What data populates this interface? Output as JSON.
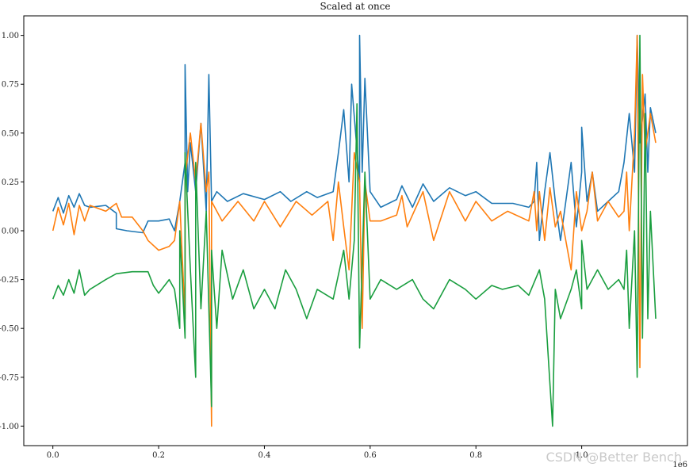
{
  "chart_data": {
    "type": "line",
    "title": "Scaled at once",
    "xlabel": "",
    "ylabel": "",
    "x_offset_label": "1e6",
    "xlim": [
      -0.055,
      1.2
    ],
    "ylim": [
      -1.1,
      1.1
    ],
    "x_ticks": [
      0.0,
      0.2,
      0.4,
      0.6,
      0.8,
      1.0
    ],
    "x_tick_labels": [
      "0.0",
      "0.2",
      "0.4",
      "0.6",
      "0.8",
      "1.0"
    ],
    "y_ticks": [
      -1.0,
      -0.75,
      -0.5,
      -0.25,
      0.0,
      0.25,
      0.5,
      0.75,
      1.0
    ],
    "y_tick_labels": [
      "-1.00",
      "-0.75",
      "-0.50",
      "-0.25",
      "0.00",
      "0.25",
      "0.50",
      "0.75",
      "1.00"
    ],
    "grid": false,
    "series": [
      {
        "color": "#1f77b4",
        "points": [
          [
            0.0,
            0.1
          ],
          [
            0.01,
            0.17
          ],
          [
            0.02,
            0.09
          ],
          [
            0.03,
            0.18
          ],
          [
            0.04,
            0.12
          ],
          [
            0.05,
            0.19
          ],
          [
            0.06,
            0.13
          ],
          [
            0.07,
            0.12
          ],
          [
            0.1,
            0.13
          ],
          [
            0.12,
            0.09
          ],
          [
            0.12,
            0.01
          ],
          [
            0.14,
            0.0
          ],
          [
            0.17,
            -0.01
          ],
          [
            0.18,
            0.05
          ],
          [
            0.2,
            0.05
          ],
          [
            0.22,
            0.06
          ],
          [
            0.23,
            0.0
          ],
          [
            0.24,
            0.15
          ],
          [
            0.25,
            0.35
          ],
          [
            0.25,
            0.85
          ],
          [
            0.255,
            0.2
          ],
          [
            0.26,
            0.45
          ],
          [
            0.27,
            0.2
          ],
          [
            0.28,
            0.55
          ],
          [
            0.29,
            0.1
          ],
          [
            0.295,
            0.8
          ],
          [
            0.3,
            0.15
          ],
          [
            0.31,
            0.2
          ],
          [
            0.33,
            0.15
          ],
          [
            0.36,
            0.19
          ],
          [
            0.4,
            0.16
          ],
          [
            0.43,
            0.2
          ],
          [
            0.45,
            0.15
          ],
          [
            0.48,
            0.2
          ],
          [
            0.5,
            0.17
          ],
          [
            0.53,
            0.2
          ],
          [
            0.54,
            0.4
          ],
          [
            0.55,
            0.62
          ],
          [
            0.56,
            0.25
          ],
          [
            0.565,
            0.75
          ],
          [
            0.58,
            0.25
          ],
          [
            0.58,
            1.0
          ],
          [
            0.585,
            0.3
          ],
          [
            0.59,
            0.78
          ],
          [
            0.6,
            0.2
          ],
          [
            0.62,
            0.12
          ],
          [
            0.65,
            0.16
          ],
          [
            0.66,
            0.23
          ],
          [
            0.68,
            0.12
          ],
          [
            0.7,
            0.24
          ],
          [
            0.72,
            0.15
          ],
          [
            0.75,
            0.22
          ],
          [
            0.78,
            0.18
          ],
          [
            0.8,
            0.2
          ],
          [
            0.83,
            0.14
          ],
          [
            0.87,
            0.14
          ],
          [
            0.9,
            0.12
          ],
          [
            0.91,
            0.15
          ],
          [
            0.915,
            0.35
          ],
          [
            0.92,
            -0.05
          ],
          [
            0.93,
            0.2
          ],
          [
            0.94,
            0.4
          ],
          [
            0.95,
            0.15
          ],
          [
            0.96,
            -0.05
          ],
          [
            0.98,
            0.35
          ],
          [
            0.99,
            0.02
          ],
          [
            1.0,
            0.3
          ],
          [
            1.0,
            0.53
          ],
          [
            1.01,
            0.15
          ],
          [
            1.02,
            0.3
          ],
          [
            1.03,
            0.1
          ],
          [
            1.05,
            0.15
          ],
          [
            1.07,
            0.2
          ],
          [
            1.08,
            0.35
          ],
          [
            1.09,
            0.6
          ],
          [
            1.1,
            0.3
          ],
          [
            1.105,
            1.0
          ],
          [
            1.11,
            0.45
          ],
          [
            1.12,
            0.7
          ],
          [
            1.125,
            0.3
          ],
          [
            1.13,
            0.63
          ],
          [
            1.14,
            0.5
          ]
        ]
      },
      {
        "color": "#ff7f0e",
        "points": [
          [
            0.0,
            0.0
          ],
          [
            0.01,
            0.12
          ],
          [
            0.02,
            0.03
          ],
          [
            0.03,
            0.14
          ],
          [
            0.04,
            -0.02
          ],
          [
            0.05,
            0.13
          ],
          [
            0.06,
            0.05
          ],
          [
            0.07,
            0.13
          ],
          [
            0.1,
            0.1
          ],
          [
            0.12,
            0.14
          ],
          [
            0.13,
            0.07
          ],
          [
            0.15,
            0.07
          ],
          [
            0.17,
            0.0
          ],
          [
            0.18,
            -0.05
          ],
          [
            0.2,
            -0.1
          ],
          [
            0.22,
            -0.08
          ],
          [
            0.23,
            -0.05
          ],
          [
            0.24,
            0.15
          ],
          [
            0.25,
            -0.45
          ],
          [
            0.25,
            0.27
          ],
          [
            0.26,
            0.5
          ],
          [
            0.27,
            0.25
          ],
          [
            0.28,
            0.55
          ],
          [
            0.29,
            0.2
          ],
          [
            0.295,
            0.3
          ],
          [
            0.3,
            -1.0
          ],
          [
            0.3,
            0.15
          ],
          [
            0.32,
            0.05
          ],
          [
            0.35,
            0.15
          ],
          [
            0.38,
            0.05
          ],
          [
            0.4,
            0.15
          ],
          [
            0.43,
            0.02
          ],
          [
            0.46,
            0.15
          ],
          [
            0.49,
            0.08
          ],
          [
            0.52,
            0.15
          ],
          [
            0.53,
            -0.05
          ],
          [
            0.54,
            0.25
          ],
          [
            0.55,
            0.02
          ],
          [
            0.56,
            -0.2
          ],
          [
            0.57,
            0.4
          ],
          [
            0.58,
            0.25
          ],
          [
            0.585,
            -0.5
          ],
          [
            0.59,
            0.25
          ],
          [
            0.6,
            0.05
          ],
          [
            0.62,
            0.05
          ],
          [
            0.65,
            0.08
          ],
          [
            0.66,
            0.18
          ],
          [
            0.67,
            0.02
          ],
          [
            0.7,
            0.2
          ],
          [
            0.72,
            -0.05
          ],
          [
            0.75,
            0.2
          ],
          [
            0.78,
            0.05
          ],
          [
            0.8,
            0.15
          ],
          [
            0.83,
            0.05
          ],
          [
            0.86,
            0.1
          ],
          [
            0.9,
            0.05
          ],
          [
            0.91,
            0.2
          ],
          [
            0.915,
            0.0
          ],
          [
            0.92,
            0.2
          ],
          [
            0.93,
            -0.05
          ],
          [
            0.94,
            0.22
          ],
          [
            0.95,
            0.02
          ],
          [
            0.96,
            0.1
          ],
          [
            0.98,
            -0.2
          ],
          [
            0.99,
            0.2
          ],
          [
            1.0,
            0.0
          ],
          [
            1.01,
            0.1
          ],
          [
            1.02,
            0.3
          ],
          [
            1.03,
            0.05
          ],
          [
            1.05,
            0.15
          ],
          [
            1.07,
            0.07
          ],
          [
            1.08,
            0.1
          ],
          [
            1.085,
            0.3
          ],
          [
            1.09,
            0.0
          ],
          [
            1.1,
            0.5
          ],
          [
            1.105,
            1.0
          ],
          [
            1.11,
            -0.7
          ],
          [
            1.115,
            0.8
          ],
          [
            1.12,
            0.4
          ],
          [
            1.13,
            0.6
          ],
          [
            1.14,
            0.45
          ]
        ]
      },
      {
        "color": "#1a9e3f",
        "points": [
          [
            0.0,
            -0.35
          ],
          [
            0.01,
            -0.28
          ],
          [
            0.02,
            -0.33
          ],
          [
            0.03,
            -0.25
          ],
          [
            0.04,
            -0.32
          ],
          [
            0.05,
            -0.2
          ],
          [
            0.06,
            -0.33
          ],
          [
            0.07,
            -0.3
          ],
          [
            0.1,
            -0.25
          ],
          [
            0.12,
            -0.22
          ],
          [
            0.15,
            -0.21
          ],
          [
            0.18,
            -0.21
          ],
          [
            0.19,
            -0.28
          ],
          [
            0.2,
            -0.32
          ],
          [
            0.22,
            -0.25
          ],
          [
            0.23,
            -0.3
          ],
          [
            0.24,
            -0.5
          ],
          [
            0.24,
            0.0
          ],
          [
            0.25,
            -0.55
          ],
          [
            0.25,
            0.4
          ],
          [
            0.26,
            -0.2
          ],
          [
            0.27,
            -0.75
          ],
          [
            0.27,
            0.35
          ],
          [
            0.28,
            -0.4
          ],
          [
            0.29,
            0.1
          ],
          [
            0.3,
            -0.9
          ],
          [
            0.3,
            -0.1
          ],
          [
            0.31,
            -0.5
          ],
          [
            0.32,
            -0.1
          ],
          [
            0.34,
            -0.35
          ],
          [
            0.36,
            -0.2
          ],
          [
            0.38,
            -0.4
          ],
          [
            0.4,
            -0.3
          ],
          [
            0.42,
            -0.4
          ],
          [
            0.44,
            -0.2
          ],
          [
            0.46,
            -0.3
          ],
          [
            0.48,
            -0.45
          ],
          [
            0.5,
            -0.3
          ],
          [
            0.53,
            -0.35
          ],
          [
            0.55,
            -0.1
          ],
          [
            0.56,
            -0.35
          ],
          [
            0.57,
            -0.05
          ],
          [
            0.575,
            0.65
          ],
          [
            0.58,
            -0.6
          ],
          [
            0.59,
            0.3
          ],
          [
            0.6,
            -0.35
          ],
          [
            0.62,
            -0.25
          ],
          [
            0.65,
            -0.3
          ],
          [
            0.68,
            -0.25
          ],
          [
            0.7,
            -0.35
          ],
          [
            0.72,
            -0.4
          ],
          [
            0.75,
            -0.25
          ],
          [
            0.78,
            -0.3
          ],
          [
            0.8,
            -0.35
          ],
          [
            0.83,
            -0.28
          ],
          [
            0.85,
            -0.3
          ],
          [
            0.88,
            -0.28
          ],
          [
            0.9,
            -0.33
          ],
          [
            0.92,
            -0.2
          ],
          [
            0.93,
            -0.35
          ],
          [
            0.945,
            -1.0
          ],
          [
            0.95,
            -0.3
          ],
          [
            0.96,
            -0.45
          ],
          [
            0.98,
            -0.3
          ],
          [
            0.99,
            -0.2
          ],
          [
            1.0,
            -0.4
          ],
          [
            1.0,
            -0.05
          ],
          [
            1.01,
            -0.3
          ],
          [
            1.03,
            -0.2
          ],
          [
            1.05,
            -0.3
          ],
          [
            1.07,
            -0.25
          ],
          [
            1.08,
            -0.3
          ],
          [
            1.085,
            -0.1
          ],
          [
            1.09,
            -0.5
          ],
          [
            1.1,
            0.0
          ],
          [
            1.105,
            -0.75
          ],
          [
            1.11,
            1.0
          ],
          [
            1.115,
            -0.55
          ],
          [
            1.12,
            0.6
          ],
          [
            1.125,
            -0.45
          ],
          [
            1.13,
            0.1
          ],
          [
            1.14,
            -0.45
          ]
        ]
      }
    ]
  },
  "watermark": "CSDN @Better Bench"
}
